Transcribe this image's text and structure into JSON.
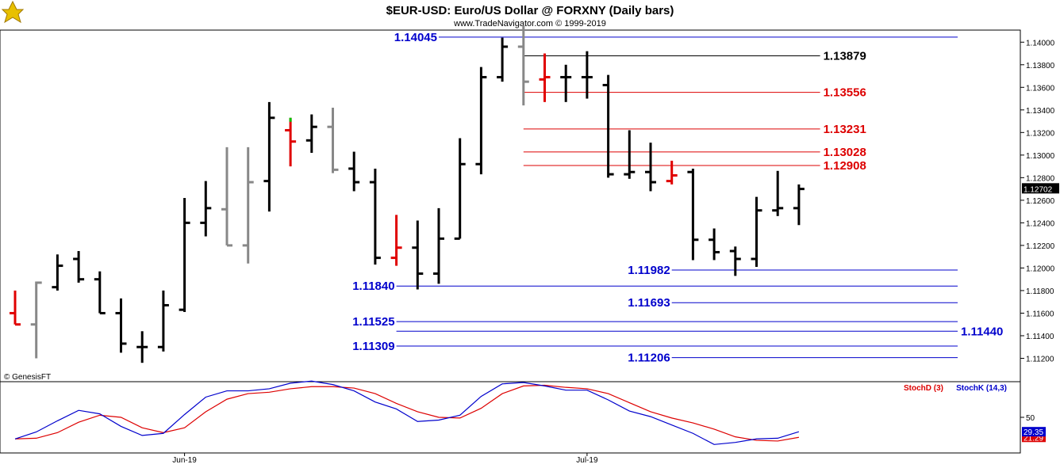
{
  "header": {
    "title": "$EUR-USD:  Euro/US Dollar @ FORXNY  (Daily bars)",
    "subtitle": "www.TradeNavigator.com © 1999-2019",
    "watermark": "© GenesisFT"
  },
  "chart_data": [
    {
      "type": "ohlc",
      "ylim": [
        1.11,
        1.141
      ],
      "yticks": [
        1.112,
        1.114,
        1.116,
        1.118,
        1.12,
        1.122,
        1.124,
        1.126,
        1.128,
        1.13,
        1.132,
        1.134,
        1.136,
        1.138,
        1.14
      ],
      "ytick_labels": [
        "1.11200",
        "1.11400",
        "1.11600",
        "1.11800",
        "1.12000",
        "1.12200",
        "1.12400",
        "1.12600",
        "1.12800",
        "1.13000",
        "1.13200",
        "1.13400",
        "1.13600",
        "1.13800",
        "1.14000"
      ],
      "last_price_label": "1.12702",
      "last_price": 1.12702,
      "xticks": [
        {
          "bar": 8,
          "label": "Jun-19"
        },
        {
          "bar": 27,
          "label": "Jul-19"
        }
      ],
      "bar_colors": {
        "black": "#000000",
        "gray": "#888888",
        "red": "#e00000",
        "green_mark": "#00c000"
      },
      "bars": [
        {
          "o": 1.116,
          "h": 1.118,
          "l": 1.115,
          "c": 1.115,
          "color": "red"
        },
        {
          "o": 1.115,
          "h": 1.1188,
          "l": 1.112,
          "c": 1.1187,
          "color": "gray"
        },
        {
          "o": 1.1183,
          "h": 1.1212,
          "l": 1.118,
          "c": 1.1202,
          "color": "black"
        },
        {
          "o": 1.1208,
          "h": 1.1215,
          "l": 1.1187,
          "c": 1.119,
          "color": "black"
        },
        {
          "o": 1.119,
          "h": 1.1197,
          "l": 1.116,
          "c": 1.116,
          "color": "black"
        },
        {
          "o": 1.116,
          "h": 1.1173,
          "l": 1.1125,
          "c": 1.1133,
          "color": "black"
        },
        {
          "o": 1.113,
          "h": 1.1144,
          "l": 1.1116,
          "c": 1.113,
          "color": "black"
        },
        {
          "o": 1.113,
          "h": 1.118,
          "l": 1.1126,
          "c": 1.1167,
          "color": "black"
        },
        {
          "o": 1.1163,
          "h": 1.1262,
          "l": 1.1161,
          "c": 1.124,
          "color": "black"
        },
        {
          "o": 1.124,
          "h": 1.1277,
          "l": 1.1228,
          "c": 1.1253,
          "color": "black"
        },
        {
          "o": 1.1252,
          "h": 1.1307,
          "l": 1.122,
          "c": 1.122,
          "color": "gray"
        },
        {
          "o": 1.122,
          "h": 1.1307,
          "l": 1.1204,
          "c": 1.1276,
          "color": "gray"
        },
        {
          "o": 1.1277,
          "h": 1.1347,
          "l": 1.125,
          "c": 1.1333,
          "color": "black"
        },
        {
          "o": 1.1322,
          "h": 1.1333,
          "l": 1.129,
          "c": 1.1312,
          "color": "red"
        },
        {
          "o": 1.1313,
          "h": 1.1336,
          "l": 1.1302,
          "c": 1.1325,
          "color": "black"
        },
        {
          "o": 1.1325,
          "h": 1.1342,
          "l": 1.1284,
          "c": 1.1287,
          "color": "gray"
        },
        {
          "o": 1.1288,
          "h": 1.1303,
          "l": 1.1268,
          "c": 1.1276,
          "color": "black"
        },
        {
          "o": 1.1276,
          "h": 1.1288,
          "l": 1.1203,
          "c": 1.1209,
          "color": "black"
        },
        {
          "o": 1.1209,
          "h": 1.1247,
          "l": 1.1202,
          "c": 1.1218,
          "color": "red"
        },
        {
          "o": 1.1218,
          "h": 1.1242,
          "l": 1.1181,
          "c": 1.1195,
          "color": "black"
        },
        {
          "o": 1.1195,
          "h": 1.1253,
          "l": 1.1186,
          "c": 1.1226,
          "color": "black"
        },
        {
          "o": 1.1226,
          "h": 1.1315,
          "l": 1.1226,
          "c": 1.1292,
          "color": "black"
        },
        {
          "o": 1.1292,
          "h": 1.1378,
          "l": 1.1283,
          "c": 1.1369,
          "color": "black"
        },
        {
          "o": 1.1369,
          "h": 1.1404,
          "l": 1.1365,
          "c": 1.1396,
          "color": "black"
        },
        {
          "o": 1.1396,
          "h": 1.1415,
          "l": 1.1344,
          "c": 1.1365,
          "color": "gray"
        },
        {
          "o": 1.1367,
          "h": 1.139,
          "l": 1.1347,
          "c": 1.1369,
          "color": "red"
        },
        {
          "o": 1.1369,
          "h": 1.138,
          "l": 1.1347,
          "c": 1.1369,
          "color": "black"
        },
        {
          "o": 1.1369,
          "h": 1.1392,
          "l": 1.135,
          "c": 1.1369,
          "color": "black"
        },
        {
          "o": 1.1362,
          "h": 1.1371,
          "l": 1.128,
          "c": 1.1283,
          "color": "black"
        },
        {
          "o": 1.1283,
          "h": 1.1322,
          "l": 1.1279,
          "c": 1.1285,
          "color": "black"
        },
        {
          "o": 1.1285,
          "h": 1.1311,
          "l": 1.1268,
          "c": 1.1276,
          "color": "black"
        },
        {
          "o": 1.1277,
          "h": 1.1295,
          "l": 1.1274,
          "c": 1.1282,
          "color": "red"
        },
        {
          "o": 1.1285,
          "h": 1.1288,
          "l": 1.1207,
          "c": 1.1225,
          "color": "black"
        },
        {
          "o": 1.1225,
          "h": 1.1235,
          "l": 1.1207,
          "c": 1.1214,
          "color": "black"
        },
        {
          "o": 1.1215,
          "h": 1.1219,
          "l": 1.1193,
          "c": 1.1208,
          "color": "black"
        },
        {
          "o": 1.1208,
          "h": 1.1263,
          "l": 1.1201,
          "c": 1.1251,
          "color": "black"
        },
        {
          "o": 1.1251,
          "h": 1.1286,
          "l": 1.1246,
          "c": 1.1253,
          "color": "black"
        },
        {
          "o": 1.1253,
          "h": 1.1274,
          "l": 1.1238,
          "c": 1.127,
          "color": "black"
        }
      ],
      "levels": [
        {
          "value": 1.14045,
          "label": "1.14045",
          "color": "#0000cc",
          "label_side": "left",
          "from_bar": 20,
          "to_bar": 47
        },
        {
          "value": 1.13879,
          "label": "1.13879",
          "color": "#000000",
          "label_side": "right",
          "from_bar": 24,
          "to_bar": 38
        },
        {
          "value": 1.13556,
          "label": "1.13556",
          "color": "#dd0000",
          "label_side": "right",
          "from_bar": 24,
          "to_bar": 38
        },
        {
          "value": 1.13231,
          "label": "1.13231",
          "color": "#dd0000",
          "label_side": "right",
          "from_bar": 24,
          "to_bar": 38
        },
        {
          "value": 1.13028,
          "label": "1.13028",
          "color": "#dd0000",
          "label_side": "right",
          "from_bar": 24,
          "to_bar": 38
        },
        {
          "value": 1.12908,
          "label": "1.12908",
          "color": "#dd0000",
          "label_side": "right",
          "from_bar": 24,
          "to_bar": 38
        },
        {
          "value": 1.11982,
          "label": "1.11982",
          "color": "#0000cc",
          "label_side": "left",
          "from_bar": 31,
          "to_bar": 47
        },
        {
          "value": 1.1184,
          "label": "1.11840",
          "color": "#0000cc",
          "label_side": "left",
          "from_bar": 18,
          "to_bar": 47
        },
        {
          "value": 1.11693,
          "label": "1.11693",
          "color": "#0000cc",
          "label_side": "left",
          "from_bar": 31,
          "to_bar": 47
        },
        {
          "value": 1.11525,
          "label": "1.11525",
          "color": "#0000cc",
          "label_side": "left",
          "from_bar": 18,
          "to_bar": 47
        },
        {
          "value": 1.1144,
          "label": "1.11440",
          "color": "#0000cc",
          "label_side": "right",
          "from_bar": 18,
          "to_bar": 47
        },
        {
          "value": 1.11309,
          "label": "1.11309",
          "color": "#0000cc",
          "label_side": "left",
          "from_bar": 18,
          "to_bar": 47
        },
        {
          "value": 1.11206,
          "label": "1.11206",
          "color": "#0000cc",
          "label_side": "left",
          "from_bar": 31,
          "to_bar": 47
        }
      ]
    },
    {
      "type": "line",
      "ylim": [
        0,
        100
      ],
      "yticks": [
        50
      ],
      "ytick_labels": [
        "50"
      ],
      "legend": [
        {
          "name": "StochD (3)",
          "color": "#dd0000"
        },
        {
          "name": "StochK (14,3)",
          "color": "#0000cc"
        }
      ],
      "series": [
        {
          "name": "StochD (3)",
          "color": "#dd0000",
          "last_label": "21.29",
          "values": [
            19,
            20,
            28,
            43,
            53,
            50,
            35,
            28,
            35,
            58,
            76,
            84,
            86,
            91,
            94,
            94,
            92,
            84,
            70,
            58,
            50,
            49,
            63,
            84,
            95,
            96,
            93,
            91,
            84,
            71,
            58,
            49,
            42,
            33,
            22,
            17,
            16,
            21.29
          ]
        },
        {
          "name": "StochK (14,3)",
          "color": "#0000cc",
          "last_label": "29.35",
          "values": [
            19,
            29,
            45,
            60,
            55,
            37,
            24,
            27,
            54,
            79,
            88,
            88,
            91,
            99,
            102,
            97,
            88,
            72,
            62,
            44,
            46,
            53,
            80,
            98,
            100,
            95,
            89,
            89,
            75,
            59,
            51,
            39,
            27,
            11,
            14,
            19,
            20,
            29.35
          ]
        }
      ]
    }
  ]
}
